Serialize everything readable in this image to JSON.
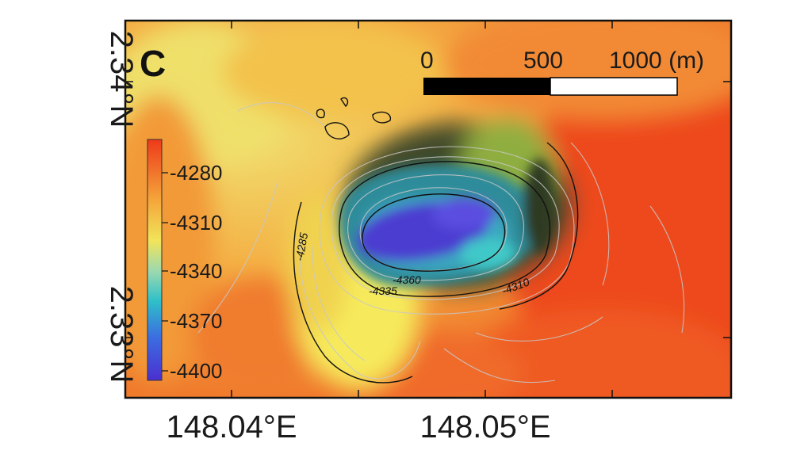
{
  "panel_label": "C",
  "latitude_labels": [
    "2.34°N",
    "2.33°N"
  ],
  "longitude_labels": [
    "148.04°E",
    "148.05°E"
  ],
  "scale_bar": {
    "labels": [
      "0",
      "500",
      "1000 (m)"
    ]
  },
  "colorbar": {
    "ticks": [
      "-4280",
      "-4310",
      "-4340",
      "-4370",
      "-4400"
    ]
  },
  "contour_labels": [
    "-4285",
    "-4360",
    "-4335",
    "-4310"
  ],
  "colors": {
    "deep": "#4b2fd0",
    "mid": "#2fc0c8",
    "shallow": "#f2e45a",
    "high": "#f0501e",
    "frame": "#111111"
  }
}
